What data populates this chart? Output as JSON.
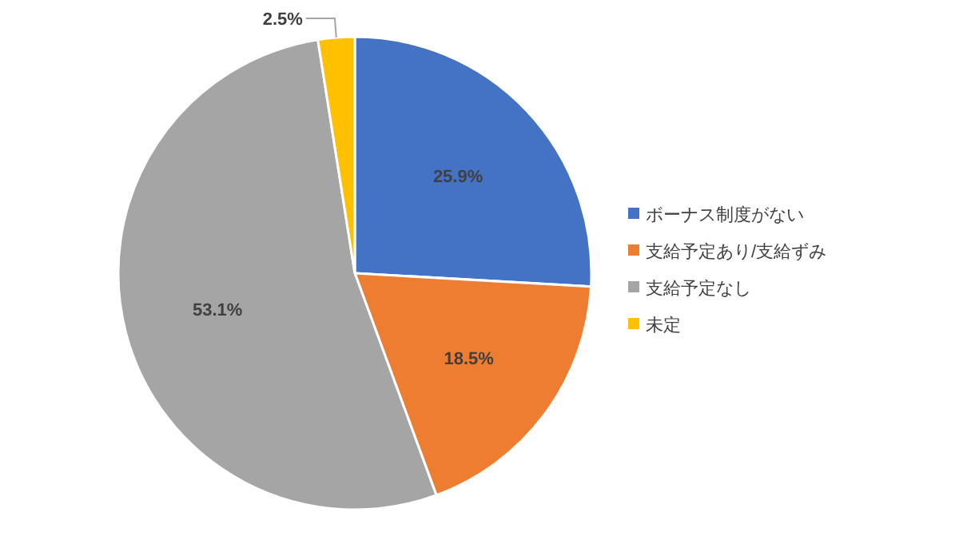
{
  "chart_data": {
    "type": "pie",
    "categories": [
      "ボーナス制度がない",
      "支給予定あり/支給ずみ",
      "支給予定なし",
      "未定"
    ],
    "values": [
      25.9,
      18.5,
      53.1,
      2.5
    ],
    "colors": [
      "#4472c4",
      "#ed7d31",
      "#a5a5a5",
      "#ffc000"
    ],
    "value_labels": [
      "25.9%",
      "18.5%",
      "53.1%",
      "2.5%"
    ],
    "legend": "right"
  }
}
